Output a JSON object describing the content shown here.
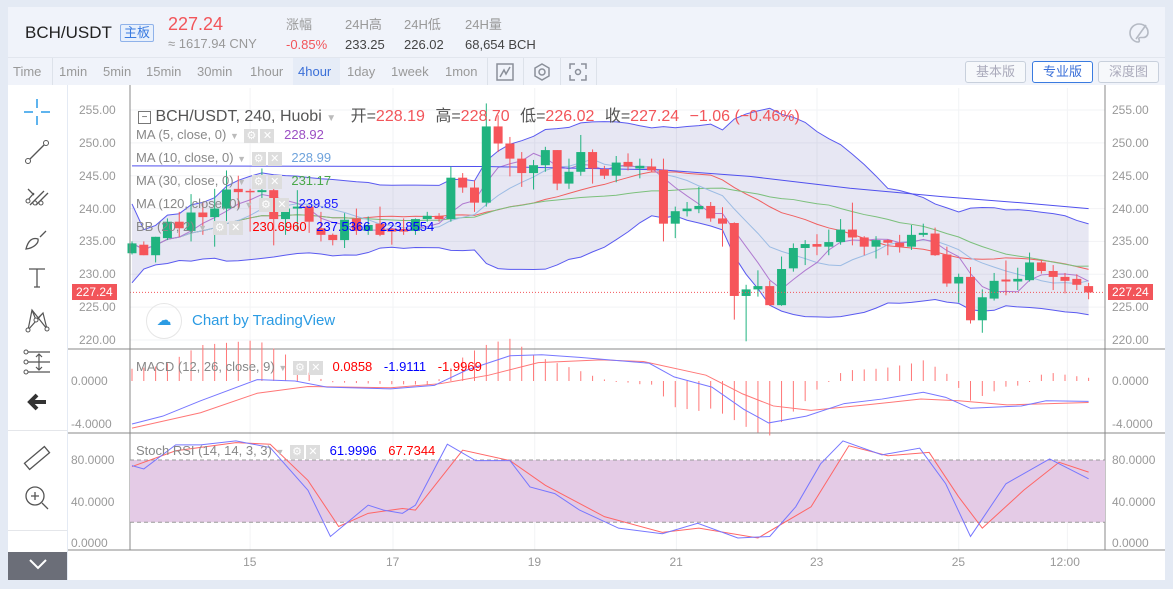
{
  "header": {
    "pair": "BCH/USDT",
    "badge": "主板",
    "price": "227.24",
    "cny": "≈ 1617.94 CNY",
    "stats": [
      {
        "label": "涨幅",
        "value": "-0.85%"
      },
      {
        "label": "24H高",
        "value": "233.25"
      },
      {
        "label": "24H低",
        "value": "226.02"
      },
      {
        "label": "24H量",
        "value": "68,654 BCH"
      }
    ]
  },
  "toolbar": {
    "timeframes": [
      "Time",
      "1min",
      "5min",
      "15min",
      "30min",
      "1hour",
      "4hour",
      "1day",
      "1week",
      "1mon"
    ],
    "active": "4hour",
    "views": [
      "基本版",
      "专业版",
      "深度图"
    ],
    "active_view": "专业版"
  },
  "legend": {
    "title": "BCH/USDT, 240, Huobi",
    "open_label": "开=",
    "open": "228.19",
    "high_label": "高=",
    "high": "228.70",
    "low_label": "低=",
    "low": "226.02",
    "close_label": "收=",
    "close": "227.24",
    "change": "−1.06 (−0.46%)",
    "ma5": {
      "label": "MA (5, close, 0)",
      "value": "228.92"
    },
    "ma10": {
      "label": "MA (10, close, 0)",
      "value": "228.99"
    },
    "ma30": {
      "label": "MA (30, close, 0)",
      "value": "231.17"
    },
    "ma120": {
      "label": "MA (120, close, 0)",
      "value": "239.85"
    },
    "bb": {
      "label": "BB (20, 2)",
      "v1": "230.6960",
      "v2": "237.5366",
      "v3": "223.8554"
    },
    "macd": {
      "label": "MACD (12, 26, close, 9)",
      "v1": "0.0858",
      "v2": "-1.9111",
      "v3": "-1.9969"
    },
    "stoch": {
      "label": "Stoch RSI (14, 14, 3, 3)",
      "v1": "61.9996",
      "v2": "67.7344"
    }
  },
  "watermark": "Chart by TradingView",
  "current_price_tag": "227.24",
  "colors": {
    "up": "#20b37f",
    "down": "#f6555a",
    "accent": "#3a7be0"
  },
  "chart_data": {
    "type": "candlestick",
    "price_axis": [
      "255.00",
      "250.00",
      "245.00",
      "240.00",
      "235.00",
      "230.00",
      "225.00",
      "220.00"
    ],
    "macd_axis": [
      "0.0000",
      "-4.0000"
    ],
    "stoch_axis": [
      "80.0000",
      "40.0000",
      "0.0000"
    ],
    "x_ticks": [
      {
        "label": "15",
        "i": 10
      },
      {
        "label": "17",
        "i": 22.1
      },
      {
        "label": "19",
        "i": 34.1
      },
      {
        "label": "21",
        "i": 46.1
      },
      {
        "label": "23",
        "i": 58
      },
      {
        "label": "25",
        "i": 70
      },
      {
        "label": "12:00",
        "i": 79.2
      }
    ],
    "ohlc": [
      [
        233.2,
        235,
        233,
        234.7
      ],
      [
        234.5,
        235,
        232.9,
        232.9
      ],
      [
        232.9,
        235.7,
        231.8,
        235.7
      ],
      [
        235.5,
        238.5,
        235.2,
        238
      ],
      [
        238,
        239.5,
        235.7,
        237
      ],
      [
        236.6,
        242.2,
        235,
        239.4
      ],
      [
        239.4,
        241,
        236,
        238.7
      ],
      [
        238.7,
        243,
        234.2,
        240
      ],
      [
        240,
        245.8,
        236,
        242.9
      ],
      [
        243,
        245,
        240,
        242.5
      ],
      [
        242.7,
        243,
        236.5,
        242.5
      ],
      [
        242.5,
        246.1,
        241,
        242.8
      ],
      [
        242.8,
        244,
        234.4,
        238.4
      ],
      [
        238.4,
        241,
        236,
        240
      ],
      [
        240,
        242.8,
        236.5,
        240.3
      ],
      [
        240.3,
        240.5,
        236.3,
        238
      ],
      [
        237,
        239.5,
        235,
        236
      ],
      [
        236,
        236.2,
        234.4,
        235.2
      ],
      [
        235.2,
        239.3,
        234,
        238.3
      ],
      [
        238.5,
        240,
        236,
        236.6
      ],
      [
        236.6,
        238.8,
        236,
        237.5
      ],
      [
        237.7,
        240.3,
        235.8,
        236
      ],
      [
        236.9,
        237,
        234.5,
        236.5
      ],
      [
        236.9,
        238.5,
        236,
        236.5
      ],
      [
        236.6,
        238.5,
        236,
        238.4
      ],
      [
        238.4,
        239.5,
        238,
        238.9
      ],
      [
        238.9,
        239.3,
        238,
        238.4
      ],
      [
        238.4,
        246.4,
        238,
        244.7
      ],
      [
        244.7,
        245.4,
        242.4,
        243.2
      ],
      [
        243.2,
        244.3,
        239.5,
        240.9
      ],
      [
        240.9,
        256,
        240.3,
        252.5
      ],
      [
        252.5,
        254.2,
        248.6,
        249.9
      ],
      [
        249.9,
        250.9,
        244.9,
        247.6
      ],
      [
        247.6,
        248.6,
        243.3,
        245.4
      ],
      [
        245.4,
        247.4,
        242.9,
        246.6
      ],
      [
        246.6,
        249.4,
        245.6,
        248.9
      ],
      [
        248.9,
        248.9,
        242.8,
        243.8
      ],
      [
        243.8,
        247.6,
        243,
        245.6
      ],
      [
        245.6,
        251.2,
        245,
        248.6
      ],
      [
        248.6,
        249,
        243.8,
        246.1
      ],
      [
        246,
        246.5,
        244.5,
        245
      ],
      [
        245,
        248,
        244,
        247
      ],
      [
        247.1,
        248.4,
        245.8,
        246.4
      ],
      [
        246.1,
        247.6,
        244.6,
        246.5
      ],
      [
        246.4,
        247.6,
        245.5,
        245.8
      ],
      [
        245.9,
        247.6,
        235,
        237.7
      ],
      [
        237.7,
        240.3,
        235.5,
        239.6
      ],
      [
        239.6,
        241,
        238.8,
        240
      ],
      [
        239.9,
        243.3,
        239.3,
        240.4
      ],
      [
        240.4,
        241,
        238,
        238.5
      ],
      [
        238.5,
        240.2,
        234.2,
        237.7
      ],
      [
        237.8,
        237.9,
        223.1,
        226.7
      ],
      [
        226.7,
        228.4,
        219.8,
        227.7
      ],
      [
        227.7,
        230.6,
        226.6,
        228.2
      ],
      [
        228.2,
        229,
        225.2,
        225.3
      ],
      [
        225.3,
        232.7,
        225.2,
        230.8
      ],
      [
        230.9,
        234.7,
        230.4,
        234
      ],
      [
        234,
        235.2,
        231.4,
        234.6
      ],
      [
        234.6,
        236.1,
        232.9,
        234.2
      ],
      [
        234.2,
        236.8,
        232.9,
        234.9
      ],
      [
        234.9,
        238.4,
        234.5,
        236.8
      ],
      [
        236.8,
        240.9,
        234.4,
        235.6
      ],
      [
        235.6,
        235.8,
        232.9,
        234.2
      ],
      [
        234.2,
        235.8,
        232.4,
        235.2
      ],
      [
        235.2,
        235.3,
        232.9,
        234.8
      ],
      [
        234.8,
        236,
        233.3,
        234.2
      ],
      [
        234.2,
        237.5,
        233.7,
        236
      ],
      [
        236,
        237.7,
        235.7,
        236.3
      ],
      [
        236.2,
        237.1,
        232.8,
        232.9
      ],
      [
        233,
        234.2,
        228.1,
        228.6
      ],
      [
        228.6,
        230.1,
        225.7,
        229.6
      ],
      [
        229.6,
        231.1,
        222.5,
        223
      ],
      [
        223,
        227.7,
        221.1,
        226.5
      ],
      [
        226.3,
        230.2,
        226,
        229
      ],
      [
        229.2,
        232.1,
        226.8,
        228.9
      ],
      [
        228.9,
        231,
        227.6,
        229.3
      ],
      [
        229.1,
        233.3,
        228.9,
        231.8
      ],
      [
        231.8,
        232.2,
        230.1,
        230.5
      ],
      [
        230.5,
        231.4,
        227.6,
        229.6
      ],
      [
        229.6,
        230.2,
        227.1,
        229
      ],
      [
        229.3,
        230,
        227.6,
        228.4
      ],
      [
        228.2,
        228.7,
        226.2,
        227.24
      ]
    ],
    "ma120": [
      [
        0,
        246.5
      ],
      [
        30,
        246.4
      ],
      [
        44.7,
        245.9
      ],
      [
        52.3,
        244.9
      ],
      [
        60.8,
        243.1
      ],
      [
        68.7,
        241.8
      ],
      [
        75.8,
        240.8
      ],
      [
        81,
        240
      ]
    ],
    "macd_line": [
      [
        0,
        -4
      ],
      [
        2.6,
        -3.27
      ],
      [
        5.8,
        -1.84
      ],
      [
        10.6,
        0.13
      ],
      [
        13.8,
        0
      ],
      [
        16.5,
        -0.57
      ],
      [
        21.9,
        -0.73
      ],
      [
        25.6,
        -0.41
      ],
      [
        28.3,
        1
      ],
      [
        32,
        2.35
      ],
      [
        34.7,
        2.44
      ],
      [
        37.9,
        2.2
      ],
      [
        43.8,
        1.65
      ],
      [
        45.9,
        0.38
      ],
      [
        49.1,
        -0.57
      ],
      [
        51.8,
        -2.63
      ],
      [
        53.9,
        -3.9
      ],
      [
        57.1,
        -3.27
      ],
      [
        60.3,
        -2.1
      ],
      [
        63.5,
        -1.68
      ],
      [
        67,
        -1.05
      ],
      [
        68.9,
        -1.52
      ],
      [
        71,
        -2.54
      ],
      [
        75.3,
        -2.32
      ],
      [
        77.4,
        -1.84
      ],
      [
        81,
        -1.9
      ]
    ],
    "signal_line": [
      [
        0,
        -4.38
      ],
      [
        5.8,
        -2.95
      ],
      [
        10.6,
        -1.14
      ],
      [
        14.9,
        -0.51
      ],
      [
        21.9,
        -0.63
      ],
      [
        26.1,
        -0.25
      ],
      [
        30.2,
        0.54
      ],
      [
        34.4,
        1.71
      ],
      [
        39.7,
        1.97
      ],
      [
        43.3,
        1.81
      ],
      [
        48.6,
        0.54
      ],
      [
        51.7,
        -1.2
      ],
      [
        54.3,
        -2.32
      ],
      [
        57.5,
        -2.73
      ],
      [
        62.7,
        -2.16
      ],
      [
        66.8,
        -1.68
      ],
      [
        70,
        -1.84
      ],
      [
        74.1,
        -2.22
      ],
      [
        81,
        -2
      ]
    ],
    "stoch_k": [
      [
        0,
        74.6
      ],
      [
        1,
        71.4
      ],
      [
        3.7,
        94.6
      ],
      [
        5.8,
        94.6
      ],
      [
        8.8,
        98.4
      ],
      [
        11.7,
        92
      ],
      [
        14.9,
        50.8
      ],
      [
        16.8,
        6.3
      ],
      [
        20,
        36.5
      ],
      [
        21.3,
        31.7
      ],
      [
        22.9,
        28.6
      ],
      [
        24,
        36.5
      ],
      [
        26.7,
        95.2
      ],
      [
        29.1,
        79.4
      ],
      [
        32,
        79.4
      ],
      [
        33.7,
        54
      ],
      [
        35.8,
        47.6
      ],
      [
        37.9,
        31.7
      ],
      [
        41.2,
        14.3
      ],
      [
        44.9,
        8.9
      ],
      [
        47.9,
        19
      ],
      [
        51.3,
        4.8
      ],
      [
        54,
        6.3
      ],
      [
        56.2,
        34.9
      ],
      [
        58.3,
        76.2
      ],
      [
        60.2,
        98.4
      ],
      [
        63.5,
        85
      ],
      [
        66.7,
        91.4
      ],
      [
        68.9,
        57.1
      ],
      [
        71,
        6.3
      ],
      [
        74,
        57.1
      ],
      [
        77.7,
        81
      ],
      [
        81,
        61.9
      ]
    ],
    "stoch_d": [
      [
        0,
        73.7
      ],
      [
        3.7,
        88.9
      ],
      [
        8.8,
        96.8
      ],
      [
        11.7,
        95.2
      ],
      [
        14.9,
        60.3
      ],
      [
        17.5,
        15.9
      ],
      [
        20,
        28.6
      ],
      [
        22.9,
        33.3
      ],
      [
        24,
        31.7
      ],
      [
        28,
        89.5
      ],
      [
        32,
        79.4
      ],
      [
        35,
        55.6
      ],
      [
        40,
        25.4
      ],
      [
        44.9,
        10.2
      ],
      [
        48,
        14.3
      ],
      [
        53,
        4.8
      ],
      [
        57.5,
        34.9
      ],
      [
        60.7,
        93.7
      ],
      [
        64,
        84.1
      ],
      [
        67.5,
        87.3
      ],
      [
        70,
        44.4
      ],
      [
        72,
        14.3
      ],
      [
        75.5,
        50.8
      ],
      [
        78.5,
        77.8
      ],
      [
        81,
        68.3
      ]
    ]
  }
}
